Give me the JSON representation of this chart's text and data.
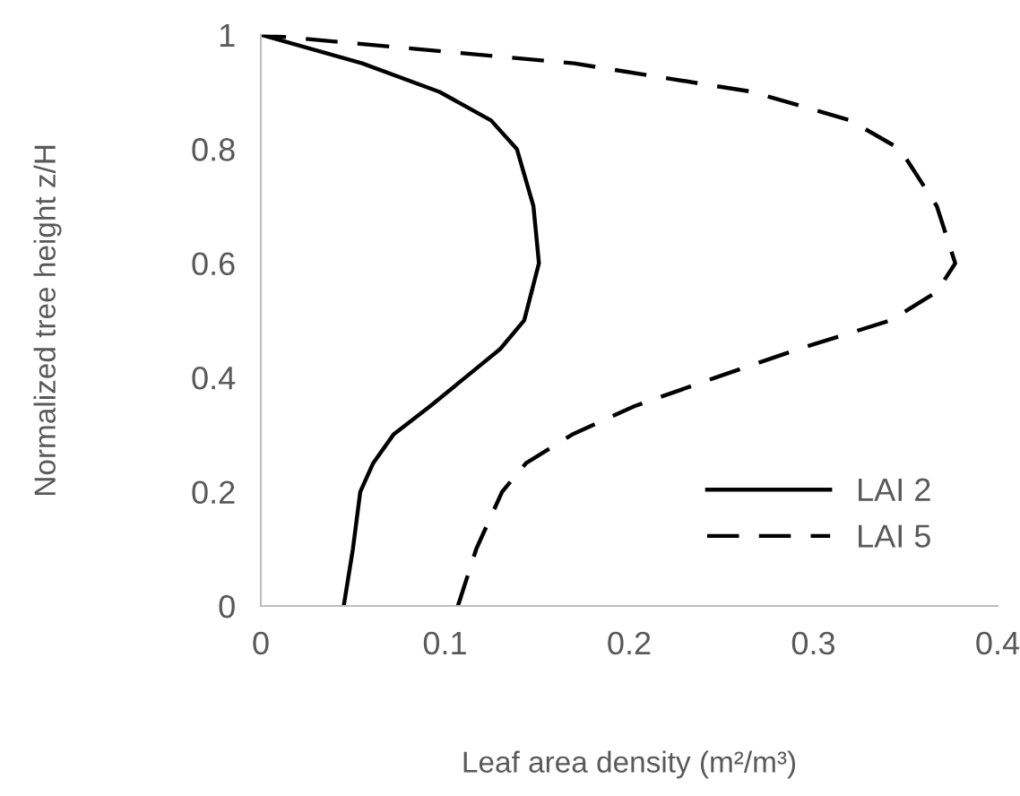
{
  "chart_data": {
    "type": "line",
    "xlabel": "Leaf area density (m²/m³)",
    "ylabel": "Normalized tree height z/H",
    "xlim": [
      0,
      0.4
    ],
    "xticks": [
      0,
      0.1,
      0.2,
      0.3,
      0.4
    ],
    "ylim": [
      0,
      1
    ],
    "yticks": [
      0,
      0.2,
      0.4,
      0.6,
      0.8,
      1
    ],
    "grid": false,
    "legend": "bottom right",
    "marker": "none",
    "series": [
      {
        "name": "LAI 2",
        "color": "#000000",
        "line_style": "solid",
        "x": [
          0.045,
          0.05,
          0.054,
          0.061,
          0.072,
          0.092,
          0.111,
          0.13,
          0.143,
          0.151,
          0.148,
          0.139,
          0.125,
          0.097,
          0.055,
          0
        ],
        "values": [
          0,
          0.1,
          0.2,
          0.25,
          0.3,
          0.35,
          0.4,
          0.45,
          0.5,
          0.6,
          0.7,
          0.8,
          0.85,
          0.9,
          0.95,
          1
        ]
      },
      {
        "name": "LAI 5",
        "color": "#000000",
        "line_style": "dashed",
        "x": [
          0.107,
          0.117,
          0.131,
          0.144,
          0.169,
          0.203,
          0.247,
          0.292,
          0.342,
          0.367,
          0.377,
          0.367,
          0.347,
          0.32,
          0.267,
          0.17,
          0
        ],
        "values": [
          0,
          0.1,
          0.2,
          0.25,
          0.3,
          0.35,
          0.4,
          0.45,
          0.5,
          0.55,
          0.6,
          0.7,
          0.8,
          0.85,
          0.9,
          0.95,
          1
        ]
      }
    ]
  }
}
